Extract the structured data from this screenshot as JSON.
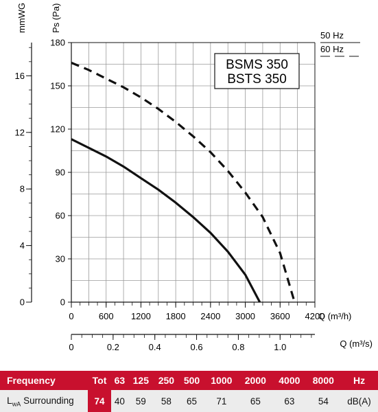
{
  "chart_data": {
    "type": "line",
    "axes": {
      "ps_label": "Ps (Pa)",
      "mmwg_label": "mmWG",
      "q_m3h_label": "Q (m³/h)",
      "q_m3s_label": "Q (m³/s)",
      "ps_range": [
        0,
        180
      ],
      "ps_ticks": [
        "0",
        "30",
        "60",
        "90",
        "120",
        "150",
        "180"
      ],
      "mmwg_range": [
        0,
        18.35
      ],
      "mmwg_ticks": [
        "0",
        "4",
        "8",
        "12",
        "16"
      ],
      "q_m3h_range": [
        0,
        4200
      ],
      "q_m3h_ticks": [
        "0",
        "600",
        "1200",
        "1800",
        "2400",
        "3000",
        "3600",
        "4200"
      ],
      "q_m3s_range": [
        0,
        1.1667
      ],
      "q_m3s_ticks": [
        "0",
        "0.2",
        "0.4",
        "0.6",
        "0.8",
        "1.0"
      ],
      "grid": true
    },
    "models_box": [
      "BSMS 350",
      "BSTS 350"
    ],
    "series": [
      {
        "name": "50 Hz",
        "style": "solid",
        "x": [
          0,
          300,
          600,
          900,
          1200,
          1500,
          1800,
          2100,
          2400,
          2700,
          3000,
          3250
        ],
        "y": [
          113,
          107,
          101,
          94,
          86,
          78,
          69,
          59,
          48,
          35,
          19,
          0
        ]
      },
      {
        "name": "60 Hz",
        "style": "dashed",
        "x": [
          0,
          300,
          600,
          900,
          1200,
          1500,
          1800,
          2100,
          2400,
          2700,
          3000,
          3300,
          3600,
          3850
        ],
        "y": [
          166,
          161,
          155,
          149,
          142,
          134,
          125,
          115,
          104,
          91,
          76,
          59,
          34,
          0
        ]
      }
    ],
    "legend": "top-right"
  },
  "sound_table": {
    "header": {
      "frequency": "Frequency",
      "tot": "Tot",
      "bands": [
        "63",
        "125",
        "250",
        "500",
        "1000",
        "2000",
        "4000",
        "8000"
      ],
      "unit": "Hz"
    },
    "row": {
      "label_l": "L",
      "label_sub": "wA",
      "label_text": "Surrounding",
      "tot": "74",
      "values": [
        "40",
        "59",
        "58",
        "65",
        "71",
        "65",
        "63",
        "54"
      ],
      "unit": "dB(A)"
    }
  },
  "colors": {
    "curve": "#111111",
    "grid": "#9a9a9a",
    "table_header": "#c8102e",
    "table_row": "#ececec"
  }
}
